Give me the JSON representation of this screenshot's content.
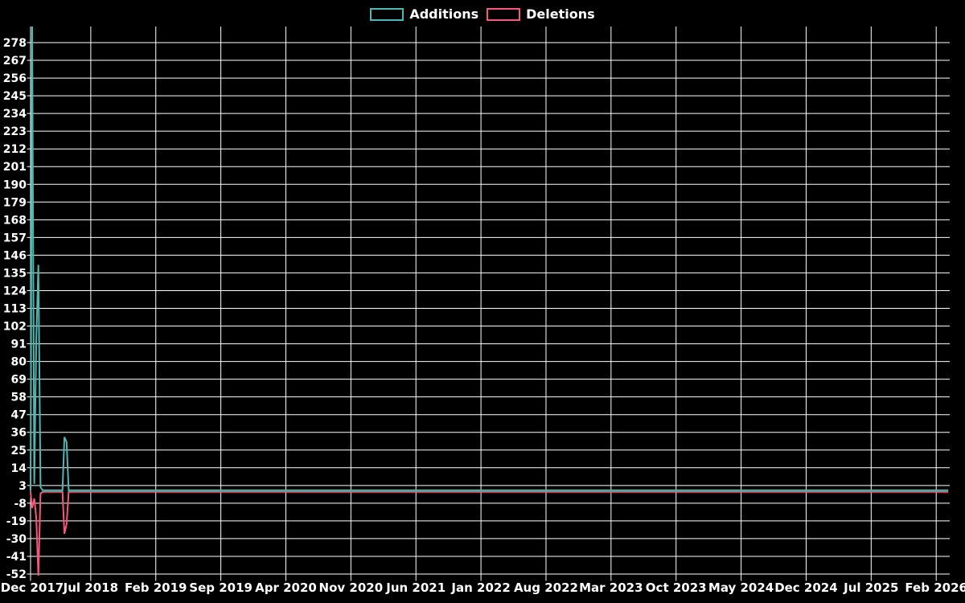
{
  "colors": {
    "background": "#000000",
    "grid": "#ffffff",
    "text": "#ffffff",
    "additions": "#4db7b2",
    "deletions": "#f5587a"
  },
  "legend": {
    "items": [
      {
        "label": "Additions",
        "color": "#4db7b2"
      },
      {
        "label": "Deletions",
        "color": "#f5587a"
      }
    ]
  },
  "chart_data": {
    "type": "line",
    "title": "",
    "xlabel": "",
    "ylabel": "",
    "grid": true,
    "legend_position": "top-center",
    "ylim": [
      -53,
      289
    ],
    "xlim": [
      "2017-12-01",
      "2026-03-15"
    ],
    "y_axis": {
      "tick_labels": [
        278,
        267,
        256,
        245,
        234,
        223,
        212,
        201,
        190,
        179,
        168,
        157,
        146,
        135,
        124,
        113,
        102,
        91,
        80,
        69,
        58,
        47,
        36,
        25,
        14,
        3,
        -8,
        -19,
        -30,
        -41,
        -52
      ],
      "tick_step": 11
    },
    "x_axis": {
      "tick_labels": [
        "Dec 2017",
        "Jul 2018",
        "Feb 2019",
        "Sep 2019",
        "Apr 2020",
        "Nov 2020",
        "Jun 2021",
        "Jan 2022",
        "Aug 2022",
        "Mar 2023",
        "Oct 2023",
        "May 2024",
        "Dec 2024",
        "Jul 2025",
        "Feb 2026"
      ],
      "tick_interval_months": 7
    },
    "series": [
      {
        "name": "Additions",
        "color": "#4db7b2",
        "points": [
          [
            "2017-12-15",
            0
          ],
          [
            "2017-12-22",
            288
          ],
          [
            "2017-12-29",
            4
          ],
          [
            "2018-01-05",
            93
          ],
          [
            "2018-01-12",
            140
          ],
          [
            "2018-01-19",
            2
          ],
          [
            "2018-01-26",
            0
          ],
          [
            "2018-03-30",
            0
          ],
          [
            "2018-04-06",
            33
          ],
          [
            "2018-04-13",
            30
          ],
          [
            "2018-04-20",
            0
          ],
          [
            "2026-03-10",
            0
          ]
        ]
      },
      {
        "name": "Deletions",
        "color": "#f5587a",
        "points": [
          [
            "2017-12-15",
            0
          ],
          [
            "2017-12-22",
            -10
          ],
          [
            "2017-12-29",
            -4
          ],
          [
            "2018-01-05",
            -16
          ],
          [
            "2018-01-12",
            -52
          ],
          [
            "2018-01-19",
            -1
          ],
          [
            "2018-01-26",
            0
          ],
          [
            "2018-03-30",
            0
          ],
          [
            "2018-04-06",
            -26
          ],
          [
            "2018-04-13",
            -20
          ],
          [
            "2018-04-20",
            0
          ],
          [
            "2026-03-10",
            0
          ]
        ]
      }
    ]
  }
}
